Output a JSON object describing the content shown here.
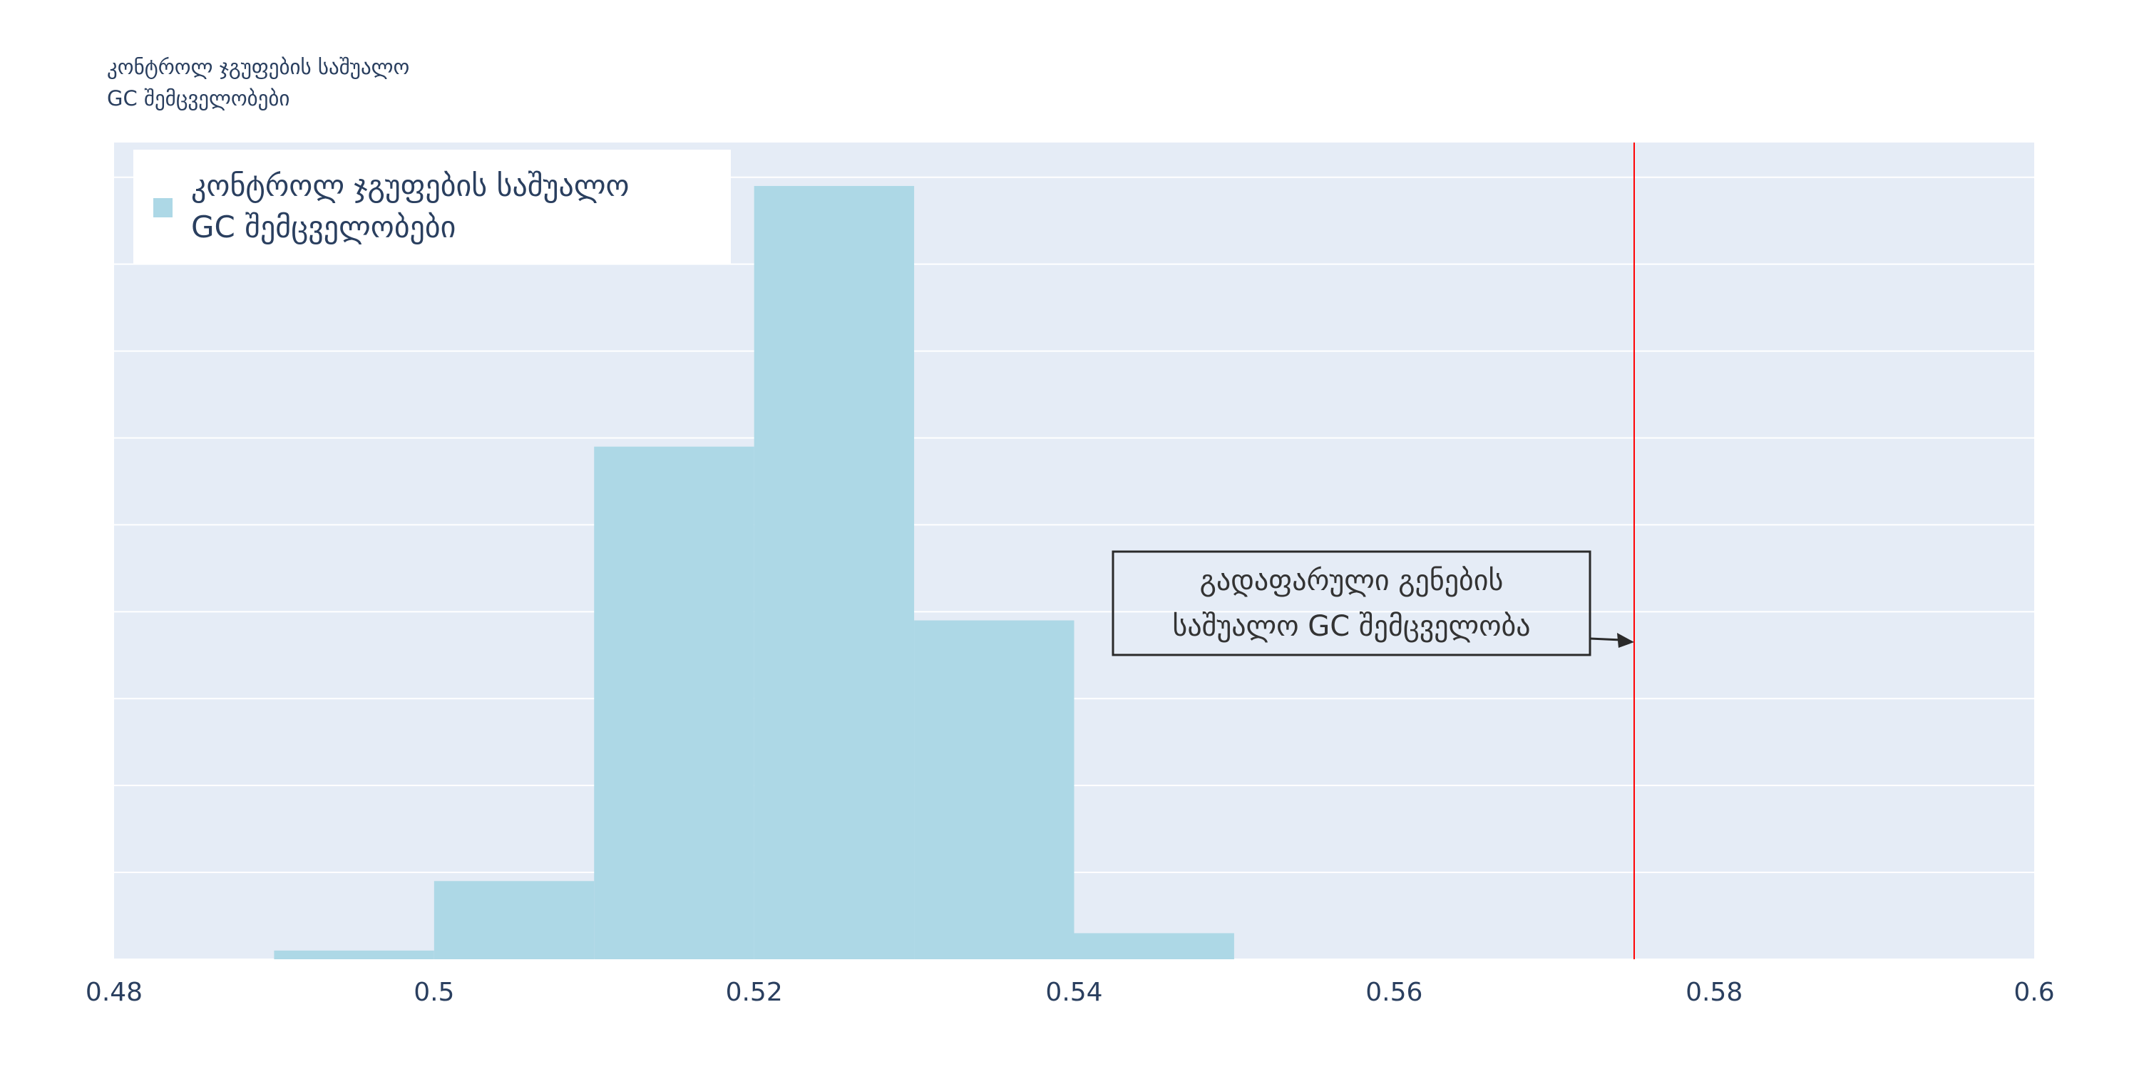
{
  "chart_data": {
    "type": "bar",
    "title": "",
    "xlabel": "",
    "ylabel": "",
    "corner_label": "კონტროლ ჯგუფების საშუალო\nGC შემცველობები",
    "legend": {
      "entries": [
        "კონტროლ ჯგუფების საშუალო\nGC შემცველობები"
      ],
      "placement": "top-left"
    },
    "bins": [
      {
        "x0": 0.49,
        "x1": 0.5,
        "count": 1
      },
      {
        "x0": 0.5,
        "x1": 0.51,
        "count": 9
      },
      {
        "x0": 0.51,
        "x1": 0.52,
        "count": 59
      },
      {
        "x0": 0.52,
        "x1": 0.53,
        "count": 89
      },
      {
        "x0": 0.53,
        "x1": 0.54,
        "count": 39
      },
      {
        "x0": 0.54,
        "x1": 0.55,
        "count": 3
      }
    ],
    "series": [
      {
        "name": "კონტროლ ჯგუფების საშუალო\nGC შემცველობები",
        "color": "#add8e6"
      }
    ],
    "xlim": [
      0.48,
      0.6
    ],
    "ylim": [
      0,
      94
    ],
    "x_ticks": [
      "0.48",
      "0.5",
      "0.52",
      "0.54",
      "0.56",
      "0.58",
      "0.6"
    ],
    "y_gridlines": [
      0,
      10,
      20,
      30,
      40,
      50,
      60,
      70,
      80,
      90
    ],
    "y_ticks_visible": false,
    "grid": true,
    "reference_line": {
      "x": 0.575,
      "color": "#ff0000"
    },
    "annotation": {
      "text": "გადაფარული გენების\nსაშუალო GC შემცველობა",
      "points_to_x": 0.575,
      "points_to_y": 36.5
    },
    "colors": {
      "plot_bg": "#e5ecf6",
      "bar": "#add8e6",
      "axis_text": "#2a3f5f",
      "ref_line": "#ff0000",
      "annotation_border": "#2a2a2a"
    }
  }
}
